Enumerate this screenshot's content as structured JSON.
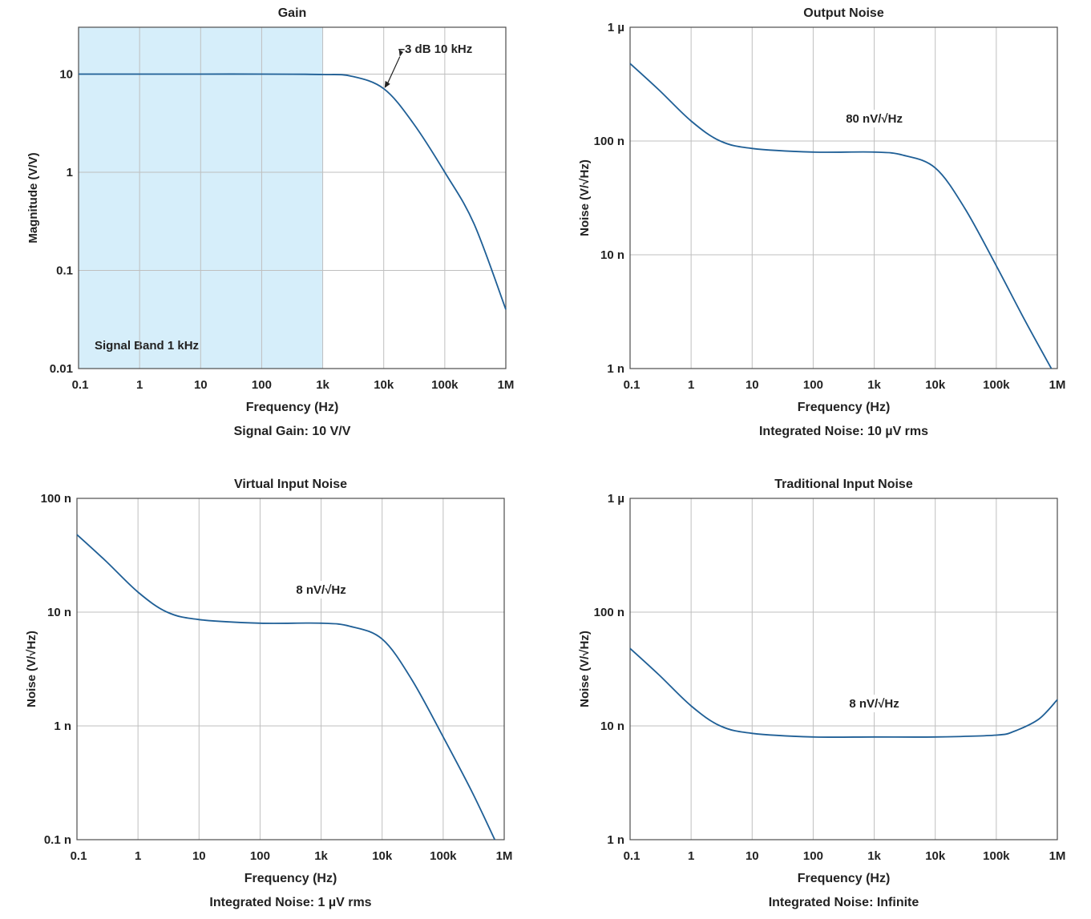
{
  "colors": {
    "line": "#1f5f96",
    "band": "#d6eefa",
    "text": "#222222"
  },
  "chart_data": [
    {
      "type": "line",
      "title": "Gain",
      "xlabel": "Frequency (Hz)",
      "ylabel": "Magnitude (V/V)",
      "caption": "Signal Gain: 10 V/V",
      "x_scale": "log",
      "y_scale": "log",
      "xlim": [
        0.1,
        1000000
      ],
      "ylim": [
        0.01,
        30
      ],
      "x_ticks": [
        {
          "v": 0.1,
          "label": "0.1"
        },
        {
          "v": 1,
          "label": "1"
        },
        {
          "v": 10,
          "label": "10"
        },
        {
          "v": 100,
          "label": "100"
        },
        {
          "v": 1000,
          "label": "1k"
        },
        {
          "v": 10000,
          "label": "10k"
        },
        {
          "v": 100000,
          "label": "100k"
        },
        {
          "v": 1000000,
          "label": "1M"
        }
      ],
      "y_ticks": [
        {
          "v": 0.01,
          "label": "0.01"
        },
        {
          "v": 0.1,
          "label": "0.1"
        },
        {
          "v": 1,
          "label": "1"
        },
        {
          "v": 10,
          "label": "10"
        }
      ],
      "shaded_region": {
        "x": [
          0.1,
          1000
        ],
        "label": "Signal Band 1 kHz"
      },
      "annotations": [
        {
          "text": "–3 dB 10 kHz",
          "x": 10000,
          "y": 7.07,
          "arrow": true
        }
      ],
      "series": [
        {
          "x": [
            0.1,
            1,
            10,
            100,
            1000,
            3000,
            10000,
            30000,
            100000,
            300000,
            1000000
          ],
          "y": [
            10,
            10,
            10,
            10,
            9.9,
            9.5,
            7.1,
            3.2,
            1.0,
            0.3,
            0.04
          ]
        }
      ]
    },
    {
      "type": "line",
      "title": "Output Noise",
      "xlabel": "Frequency (Hz)",
      "ylabel": "Noise (V/√Hz)",
      "caption": "Integrated Noise: 10 µV rms",
      "x_scale": "log",
      "y_scale": "log",
      "xlim": [
        0.1,
        1000000
      ],
      "ylim": [
        1e-09,
        1e-06
      ],
      "x_ticks": [
        {
          "v": 0.1,
          "label": "0.1"
        },
        {
          "v": 1,
          "label": "1"
        },
        {
          "v": 10,
          "label": "10"
        },
        {
          "v": 100,
          "label": "100"
        },
        {
          "v": 1000,
          "label": "1k"
        },
        {
          "v": 10000,
          "label": "10k"
        },
        {
          "v": 100000,
          "label": "100k"
        },
        {
          "v": 1000000,
          "label": "1M"
        }
      ],
      "y_ticks": [
        {
          "v": 1e-09,
          "label": "1 n"
        },
        {
          "v": 1e-08,
          "label": "10 n"
        },
        {
          "v": 1e-07,
          "label": "100 n"
        },
        {
          "v": 1e-06,
          "label": "1 µ"
        }
      ],
      "annotations": [
        {
          "text": "80 nV/√Hz",
          "x": 1000,
          "y": 1.5e-07
        }
      ],
      "series": [
        {
          "x": [
            0.1,
            0.3,
            1,
            3,
            10,
            100,
            1000,
            3000,
            10000,
            30000,
            100000,
            300000,
            800000
          ],
          "y": [
            4.8e-07,
            2.8e-07,
            1.5e-07,
            1e-07,
            8.6e-08,
            8e-08,
            8e-08,
            7.5e-08,
            5.8e-08,
            2.6e-08,
            8e-09,
            2.6e-09,
            1e-09
          ]
        }
      ]
    },
    {
      "type": "line",
      "title": "Virtual Input Noise",
      "xlabel": "Frequency (Hz)",
      "ylabel": "Noise (V/√Hz)",
      "caption": "Integrated Noise: 1 µV rms",
      "x_scale": "log",
      "y_scale": "log",
      "xlim": [
        0.1,
        1000000
      ],
      "ylim": [
        1e-10,
        1e-07
      ],
      "x_ticks": [
        {
          "v": 0.1,
          "label": "0.1"
        },
        {
          "v": 1,
          "label": "1"
        },
        {
          "v": 10,
          "label": "10"
        },
        {
          "v": 100,
          "label": "100"
        },
        {
          "v": 1000,
          "label": "1k"
        },
        {
          "v": 10000,
          "label": "10k"
        },
        {
          "v": 100000,
          "label": "100k"
        },
        {
          "v": 1000000,
          "label": "1M"
        }
      ],
      "y_ticks": [
        {
          "v": 1e-10,
          "label": "0.1 n"
        },
        {
          "v": 1e-09,
          "label": "1 n"
        },
        {
          "v": 1e-08,
          "label": "10 n"
        },
        {
          "v": 1e-07,
          "label": "100 n"
        }
      ],
      "annotations": [
        {
          "text": "8 nV/√Hz",
          "x": 1000,
          "y": 1.5e-08
        }
      ],
      "series": [
        {
          "x": [
            0.1,
            0.3,
            1,
            3,
            10,
            100,
            1000,
            3000,
            10000,
            30000,
            100000,
            300000,
            700000
          ],
          "y": [
            4.8e-08,
            2.8e-08,
            1.5e-08,
            1e-08,
            8.6e-09,
            8e-09,
            8e-09,
            7.5e-09,
            5.8e-09,
            2.6e-09,
            8e-10,
            2.6e-10,
            1e-10
          ]
        }
      ]
    },
    {
      "type": "line",
      "title": "Traditional Input Noise",
      "xlabel": "Frequency (Hz)",
      "ylabel": "Noise (V/√Hz)",
      "caption": "Integrated Noise: Infinite",
      "x_scale": "log",
      "y_scale": "log",
      "xlim": [
        0.1,
        1000000
      ],
      "ylim": [
        1e-09,
        1e-06
      ],
      "x_ticks": [
        {
          "v": 0.1,
          "label": "0.1"
        },
        {
          "v": 1,
          "label": "1"
        },
        {
          "v": 10,
          "label": "10"
        },
        {
          "v": 100,
          "label": "100"
        },
        {
          "v": 1000,
          "label": "1k"
        },
        {
          "v": 10000,
          "label": "10k"
        },
        {
          "v": 100000,
          "label": "100k"
        },
        {
          "v": 1000000,
          "label": "1M"
        }
      ],
      "y_ticks": [
        {
          "v": 1e-09,
          "label": "1 n"
        },
        {
          "v": 1e-08,
          "label": "10 n"
        },
        {
          "v": 1e-07,
          "label": "100 n"
        },
        {
          "v": 1e-06,
          "label": "1 µ"
        }
      ],
      "annotations": [
        {
          "text": "8 nV/√Hz",
          "x": 1000,
          "y": 1.5e-08
        }
      ],
      "series": [
        {
          "x": [
            0.1,
            0.3,
            1,
            3,
            10,
            100,
            1000,
            10000,
            100000,
            200000,
            500000,
            1000000
          ],
          "y": [
            4.8e-08,
            2.8e-08,
            1.5e-08,
            1e-08,
            8.6e-09,
            8e-09,
            8e-09,
            8e-09,
            8.3e-09,
            9e-09,
            1.15e-08,
            1.7e-08
          ]
        }
      ]
    }
  ]
}
